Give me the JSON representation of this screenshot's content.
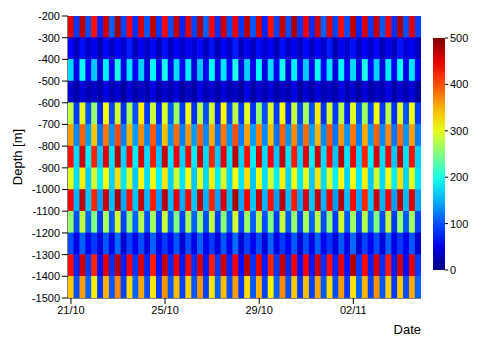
{
  "chart_data": {
    "type": "heatmap",
    "x_label": "Date",
    "y_label": "Depth [m]",
    "x": [
      "21/10",
      null,
      null,
      null,
      null,
      null,
      null,
      null,
      null,
      null,
      null,
      null,
      null,
      null,
      null,
      null,
      "25/10",
      null,
      null,
      null,
      null,
      null,
      null,
      null,
      null,
      null,
      null,
      null,
      null,
      null,
      null,
      null,
      "29/10",
      null,
      null,
      null,
      null,
      null,
      null,
      null,
      null,
      null,
      null,
      null,
      null,
      null,
      null,
      null,
      "02/11",
      null,
      null,
      null,
      null,
      null,
      null,
      null,
      null,
      null,
      null,
      null
    ],
    "y": [
      -250,
      -350,
      -450,
      -550,
      -650,
      -750,
      -850,
      -950,
      -1050,
      -1150,
      -1250,
      -1350,
      -1450
    ],
    "ylim": [
      -1500,
      -200
    ],
    "yticks": [
      -200,
      -300,
      -400,
      -500,
      -600,
      -700,
      -800,
      -900,
      -1000,
      -1100,
      -1200,
      -1300,
      -1400,
      -1500
    ],
    "values": [
      [
        450,
        90,
        470,
        100,
        430,
        80,
        460,
        110,
        480,
        95,
        440,
        85,
        455,
        105,
        470,
        90,
        435,
        100,
        465,
        80,
        450,
        95,
        475,
        110,
        440,
        85,
        460,
        100,
        445,
        90,
        470,
        105,
        455,
        80,
        430,
        95,
        465,
        100,
        480,
        90,
        445,
        85,
        460,
        110,
        450,
        95,
        435,
        100,
        470,
        80,
        455,
        90,
        465,
        105,
        440,
        85,
        475,
        100,
        450,
        95
      ],
      [
        60,
        30,
        70,
        35,
        55,
        25,
        65,
        30,
        60,
        40,
        75,
        30,
        55,
        35,
        65,
        25,
        70,
        30,
        60,
        35,
        55,
        40,
        65,
        30,
        70,
        25,
        60,
        35,
        75,
        30,
        55,
        30,
        65,
        40,
        60,
        25,
        70,
        35,
        55,
        30,
        65,
        30,
        60,
        35,
        75,
        25,
        55,
        40,
        70,
        30,
        60,
        35,
        65,
        25,
        55,
        30,
        70,
        40,
        60,
        30
      ],
      [
        170,
        50,
        190,
        60,
        160,
        45,
        180,
        55,
        200,
        50,
        175,
        60,
        165,
        45,
        185,
        55,
        195,
        50,
        170,
        60,
        180,
        45,
        160,
        55,
        190,
        50,
        175,
        60,
        200,
        45,
        165,
        55,
        185,
        50,
        170,
        60,
        195,
        45,
        180,
        55,
        160,
        50,
        190,
        60,
        175,
        45,
        185,
        55,
        170,
        50,
        200,
        60,
        165,
        45,
        180,
        55,
        190,
        50,
        175,
        60
      ],
      [
        40,
        20,
        45,
        25,
        35,
        20,
        50,
        25,
        40,
        15,
        45,
        20,
        35,
        25,
        50,
        20,
        40,
        25,
        45,
        15,
        35,
        20,
        50,
        25,
        40,
        20,
        45,
        25,
        35,
        15,
        50,
        20,
        40,
        25,
        45,
        20,
        35,
        25,
        50,
        15,
        40,
        20,
        45,
        25,
        35,
        20,
        50,
        25,
        40,
        15,
        45,
        20,
        35,
        25,
        50,
        20,
        40,
        25,
        45,
        15
      ],
      [
        280,
        90,
        300,
        100,
        260,
        80,
        310,
        95,
        290,
        85,
        270,
        100,
        320,
        90,
        285,
        80,
        295,
        105,
        265,
        90,
        305,
        85,
        275,
        100,
        290,
        80,
        315,
        95,
        280,
        90,
        300,
        85,
        260,
        100,
        295,
        90,
        310,
        80,
        285,
        95,
        270,
        100,
        320,
        85,
        290,
        90,
        275,
        80,
        300,
        100,
        265,
        95,
        310,
        90,
        280,
        85,
        295,
        100,
        305,
        90
      ],
      [
        360,
        130,
        390,
        140,
        340,
        120,
        380,
        135,
        400,
        125,
        350,
        140,
        370,
        130,
        395,
        120,
        345,
        135,
        385,
        125,
        365,
        140,
        390,
        130,
        355,
        120,
        380,
        135,
        400,
        125,
        360,
        140,
        375,
        130,
        345,
        120,
        390,
        135,
        370,
        125,
        385,
        140,
        350,
        130,
        395,
        120,
        365,
        135,
        380,
        125,
        355,
        140,
        390,
        130,
        370,
        120,
        385,
        135,
        360,
        125
      ],
      [
        430,
        170,
        460,
        180,
        420,
        160,
        450,
        175,
        470,
        165,
        440,
        180,
        455,
        170,
        425,
        160,
        465,
        175,
        445,
        165,
        435,
        180,
        460,
        170,
        420,
        160,
        450,
        175,
        470,
        165,
        430,
        180,
        455,
        170,
        440,
        160,
        465,
        175,
        425,
        165,
        450,
        180,
        460,
        170,
        435,
        160,
        470,
        175,
        445,
        165,
        420,
        180,
        455,
        170,
        440,
        160,
        465,
        175,
        430,
        165
      ],
      [
        300,
        170,
        320,
        160,
        290,
        180,
        310,
        165,
        330,
        175,
        295,
        160,
        315,
        170,
        305,
        180,
        325,
        165,
        290,
        175,
        310,
        160,
        300,
        170,
        320,
        180,
        295,
        165,
        315,
        175,
        330,
        160,
        305,
        170,
        290,
        180,
        320,
        165,
        310,
        175,
        300,
        160,
        325,
        170,
        295,
        180,
        315,
        165,
        305,
        175,
        320,
        160,
        290,
        170,
        310,
        180,
        330,
        165,
        300,
        175
      ],
      [
        440,
        150,
        470,
        160,
        420,
        140,
        460,
        155,
        480,
        145,
        430,
        160,
        465,
        150,
        425,
        140,
        475,
        155,
        450,
        145,
        435,
        160,
        470,
        150,
        420,
        140,
        455,
        155,
        480,
        145,
        440,
        160,
        460,
        150,
        430,
        140,
        470,
        155,
        425,
        145,
        455,
        160,
        465,
        150,
        445,
        140,
        475,
        155,
        435,
        145,
        420,
        160,
        460,
        150,
        440,
        140,
        470,
        155,
        450,
        145
      ],
      [
        260,
        100,
        280,
        110,
        250,
        90,
        270,
        105,
        290,
        95,
        255,
        110,
        275,
        100,
        265,
        90,
        285,
        105,
        250,
        95,
        270,
        110,
        260,
        100,
        280,
        90,
        255,
        105,
        290,
        95,
        265,
        110,
        275,
        100,
        250,
        90,
        285,
        105,
        260,
        95,
        270,
        110,
        280,
        100,
        255,
        90,
        290,
        105,
        265,
        95,
        275,
        110,
        250,
        100,
        285,
        90,
        260,
        105,
        270,
        95
      ],
      [
        100,
        50,
        110,
        55,
        90,
        45,
        105,
        50,
        115,
        40,
        95,
        55,
        100,
        45,
        110,
        50,
        90,
        55,
        105,
        40,
        100,
        50,
        110,
        55,
        90,
        45,
        105,
        50,
        115,
        40,
        95,
        55,
        100,
        45,
        110,
        50,
        90,
        55,
        105,
        40,
        100,
        50,
        110,
        55,
        90,
        45,
        105,
        50,
        115,
        40,
        95,
        55,
        100,
        45,
        110,
        50,
        90,
        55,
        105,
        40
      ],
      [
        430,
        80,
        460,
        90,
        420,
        70,
        450,
        85,
        470,
        75,
        440,
        90,
        455,
        80,
        425,
        70,
        465,
        85,
        445,
        75,
        435,
        85,
        455,
        75,
        425,
        90,
        460,
        80,
        440,
        70,
        470,
        85,
        450,
        75,
        420,
        90,
        465,
        80,
        445,
        70,
        440,
        75,
        460,
        85,
        430,
        80,
        450,
        70,
        475,
        90,
        435,
        80,
        455,
        85,
        425,
        75,
        460,
        70,
        450,
        90
      ],
      [
        340,
        100,
        360,
        110,
        320,
        90,
        350,
        105,
        370,
        95,
        330,
        110,
        355,
        100,
        325,
        90,
        365,
        105,
        345,
        95,
        335,
        105,
        365,
        95,
        325,
        110,
        345,
        100,
        360,
        90,
        330,
        105,
        350,
        95,
        320,
        110,
        370,
        100,
        340,
        90,
        345,
        95,
        355,
        105,
        330,
        100,
        360,
        90,
        325,
        110,
        350,
        95,
        365,
        105,
        335,
        90,
        340,
        100,
        355,
        110
      ]
    ],
    "colorbar": {
      "range": [
        0,
        500
      ],
      "ticks": [
        0,
        100,
        200,
        300,
        400,
        500
      ]
    }
  }
}
